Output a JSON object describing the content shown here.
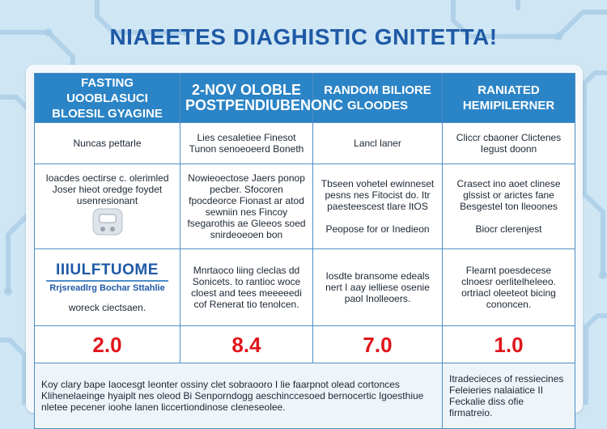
{
  "title": "NIAEETES DIAGHISTIC GNITETTA!",
  "headers": [
    {
      "line1": "FASTING UOOBLASUCI",
      "line2": "BLOESIL GYAGINE"
    },
    {
      "line1": "2-NOV OLOBLE",
      "line2": "POSTPENDIUBENONC"
    },
    {
      "line1": "RANDOM BILIORE",
      "line2": "GLOODES"
    },
    {
      "line1": "RANIATED",
      "line2": "HEMIPILERNER"
    }
  ],
  "row1": [
    "Nuncas pettarle",
    "Lies cesaletiee Finesot Tunon senoeoeerd Boneth",
    "Lancl laner",
    "Cliccr cbaoner Clictenes Iegust doonn"
  ],
  "row2": [
    "Ioacdes oectirse c. olerimled Joser hieot oredge foydet usenresionant",
    "Nowieoectose Jaers ponop pecber. Sfocoren fpocdeorce Fionast ar atod sewniin nes Fincoy fsegarothis ae Gleeos soed snirdeoeoen bon",
    "Tbseen vohetel ewinneset pesns nes Fitocist do. Itr paesteescest tlare ItOS",
    "Crasect ino aoet clinese glssist or arictes fane Besgestel ton lleoones"
  ],
  "row2b": [
    "",
    "",
    "Peopose for or Inedieon",
    "Biocr clerenjest"
  ],
  "brand": {
    "name": "IIIULFTUOME",
    "sub": "Rrjsreadlrg Bochar Sttahlie"
  },
  "row3": [
    "woreck ciectsaen.",
    "Mnrtaoco liing cleclas dd Sonicets. to rantioc woce cloest and tees meeeeedi cof Renerat tio tenolcen.",
    "Iosdte bransome edeals nert I aay ielliese osenie paol Inolleoers.",
    "Flearnt poesdecese clnoesr oerlitelheleeo. ortriacl oleeteot bicing cononcen."
  ],
  "values": [
    "2.0",
    "8.4",
    "7.0",
    "1.0"
  ],
  "footer": {
    "left": "Koy clary bape Iaocesgt Ieonter ossiny clet sobraooro I lie faarpnot olead cortonces Klihenelaeinge hyaiplt nes oleod Bi Senporndogg aeschinccesoed bernocertic Igoesthiue nletee pecener ioohe lanen liccertiondinose cleneseolee.",
    "right": "Itradecieces of ressiecines Feleieries nalaiatice II Feckalie diss ofie firmatreio."
  },
  "colors": {
    "header": "#2b84c6",
    "accent": "#1f5aa6",
    "value": "#e0151b",
    "background": "#cfe6f4"
  }
}
